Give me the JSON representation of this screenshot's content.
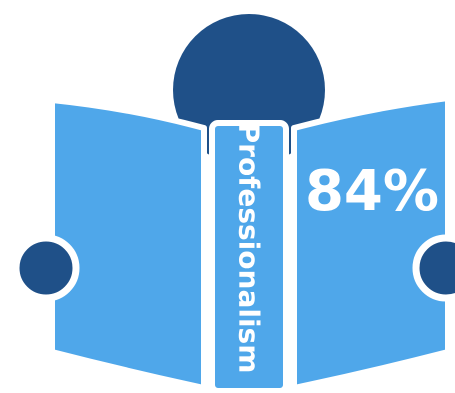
{
  "illustration": {
    "metric_label": "Professionalism",
    "metric_value": "84%",
    "metric_fraction": 0.84,
    "colors": {
      "head": "#1f5088",
      "hands": "#1f5088",
      "book": "#4fa7ea",
      "outline": "#ffffff",
      "background": "#ffffff"
    }
  }
}
